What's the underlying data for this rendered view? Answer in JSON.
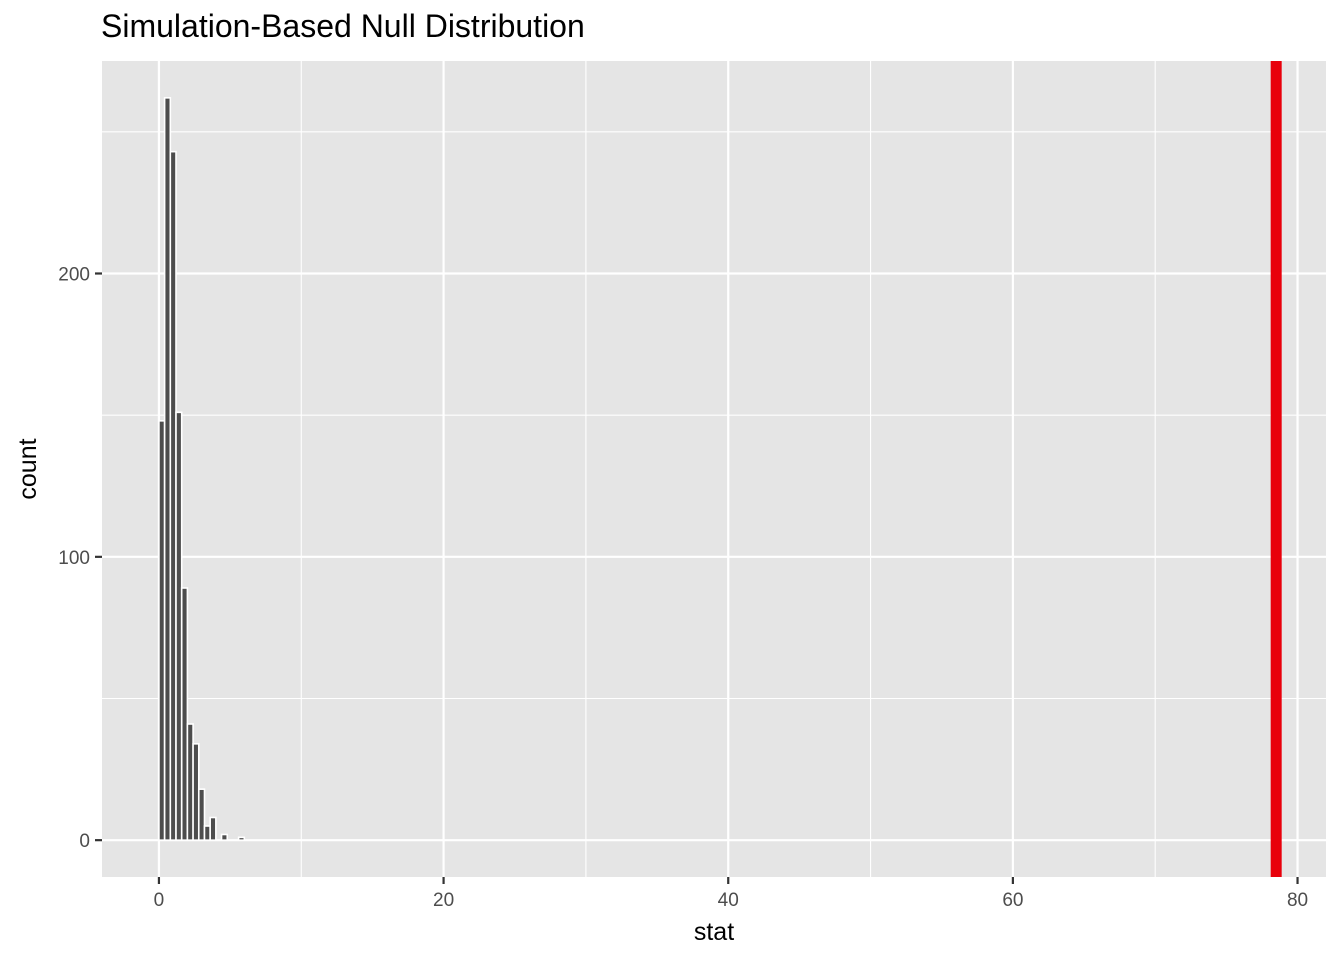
{
  "chart_data": {
    "type": "bar",
    "title": "Simulation-Based Null Distribution",
    "xlabel": "stat",
    "ylabel": "count",
    "xlim": [
      -4,
      82
    ],
    "ylim": [
      -13,
      275
    ],
    "x_ticks": [
      0,
      20,
      40,
      60,
      80
    ],
    "x_tick_labels": [
      "0",
      "20",
      "40",
      "60",
      "80"
    ],
    "x_minor_gridlines": [
      10,
      30,
      50,
      70
    ],
    "y_ticks": [
      0,
      100,
      200
    ],
    "y_tick_labels": [
      "0",
      "100",
      "200"
    ],
    "y_minor_gridlines": [
      50,
      150,
      250
    ],
    "grid": true,
    "bin_width": 0.4,
    "bins": [
      {
        "x": 0.0,
        "count": 148
      },
      {
        "x": 0.4,
        "count": 262
      },
      {
        "x": 0.8,
        "count": 243
      },
      {
        "x": 1.2,
        "count": 151
      },
      {
        "x": 1.6,
        "count": 89
      },
      {
        "x": 2.0,
        "count": 41
      },
      {
        "x": 2.4,
        "count": 34
      },
      {
        "x": 2.8,
        "count": 18
      },
      {
        "x": 3.2,
        "count": 5
      },
      {
        "x": 3.6,
        "count": 8
      },
      {
        "x": 4.0,
        "count": 0
      },
      {
        "x": 4.4,
        "count": 2
      },
      {
        "x": 4.8,
        "count": 0
      },
      {
        "x": 5.2,
        "count": 0
      },
      {
        "x": 5.6,
        "count": 1
      }
    ],
    "observed_stat": 78.5,
    "colors": {
      "panel_background": "#e5e5e5",
      "gridline": "#ffffff",
      "bar_fill": "#4d4d4d",
      "bar_outline": "#ffffff",
      "observed_line": "#e8000b",
      "tick_text": "#4d4d4d",
      "title_text": "#000000"
    }
  }
}
